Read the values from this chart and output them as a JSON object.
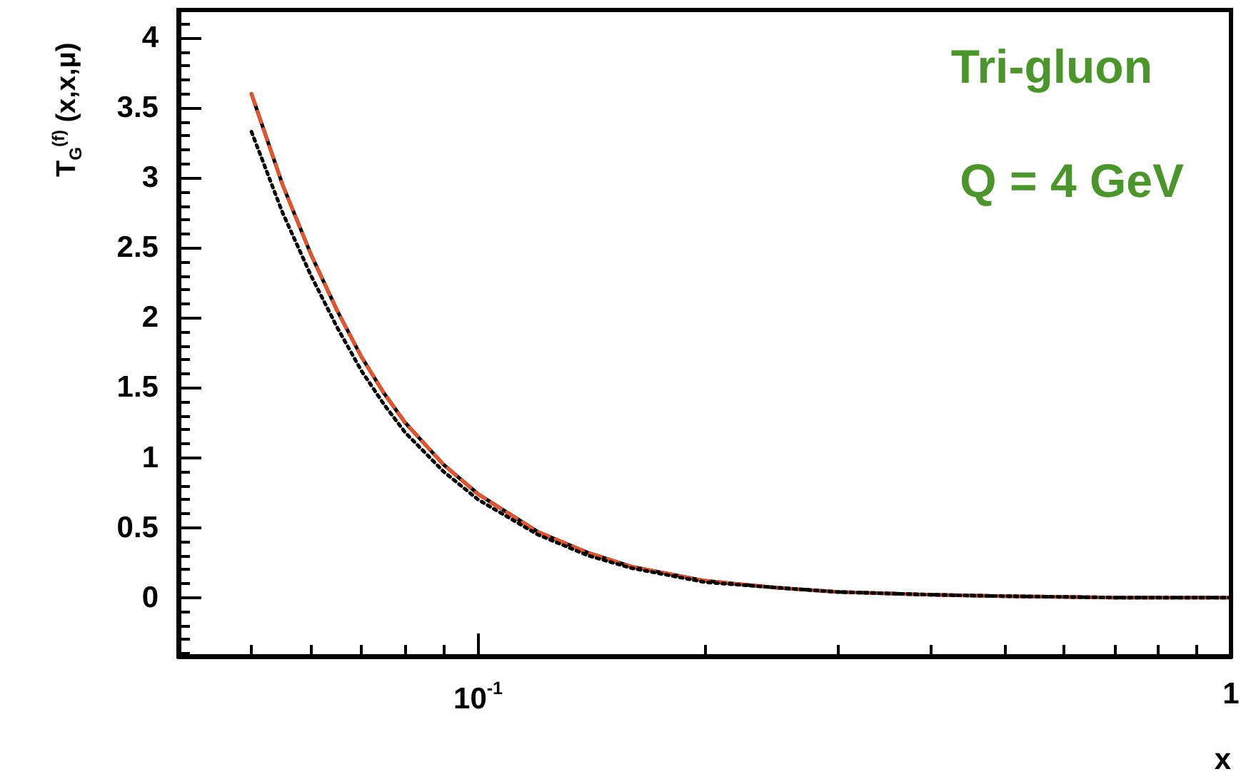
{
  "chart_data": {
    "type": "line",
    "ylabel": "T$_{G}$$^{(f)}$ (x,x,μ)",
    "xlabel": "x",
    "log": "x",
    "annotations": [
      "Tri-gluon",
      "Q = 4 GeV"
    ],
    "xlim": [
      0.04,
      1
    ],
    "ylim": [
      -0.42,
      4.2
    ],
    "xticks": [
      {
        "value": 0.1,
        "label": "10$^{-1}$"
      },
      1,
      {
        "value": 0.05,
        "label": null
      },
      {
        "value": 0.06,
        "label": null
      },
      {
        "value": 0.07,
        "label": null
      },
      {
        "value": 0.08,
        "label": null
      },
      {
        "value": 0.09,
        "label": null
      },
      {
        "value": 0.2,
        "label": null
      },
      {
        "value": 0.3,
        "label": null
      },
      {
        "value": 0.4,
        "label": null
      },
      {
        "value": 0.5,
        "label": null
      },
      {
        "value": 0.6,
        "label": null
      },
      {
        "value": 0.7,
        "label": null
      },
      {
        "value": 0.8,
        "label": null
      },
      {
        "value": 0.9,
        "label": null
      }
    ],
    "yticks": [
      0,
      0.5,
      1,
      1.5,
      2,
      2.5,
      3,
      3.5,
      4,
      {
        "value": -0.4,
        "label": null
      },
      {
        "value": -0.3,
        "label": null
      },
      {
        "value": -0.2,
        "label": null
      },
      {
        "value": -0.1,
        "label": null
      },
      {
        "value": 0.1,
        "label": null
      },
      {
        "value": 0.2,
        "label": null
      },
      {
        "value": 0.3,
        "label": null
      },
      {
        "value": 0.4,
        "label": null
      },
      {
        "value": 0.6,
        "label": null
      },
      {
        "value": 0.7,
        "label": null
      },
      {
        "value": 0.8,
        "label": null
      },
      {
        "value": 0.9,
        "label": null
      },
      {
        "value": 1.1,
        "label": null
      },
      {
        "value": 1.2,
        "label": null
      },
      {
        "value": 1.3,
        "label": null
      },
      {
        "value": 1.4,
        "label": null
      },
      {
        "value": 1.6,
        "label": null
      },
      {
        "value": 1.7,
        "label": null
      },
      {
        "value": 1.8,
        "label": null
      },
      {
        "value": 1.9,
        "label": null
      },
      {
        "value": 2.1,
        "label": null
      },
      {
        "value": 2.2,
        "label": null
      },
      {
        "value": 2.3,
        "label": null
      },
      {
        "value": 2.4,
        "label": null
      },
      {
        "value": 2.6,
        "label": null
      },
      {
        "value": 2.7,
        "label": null
      },
      {
        "value": 2.8,
        "label": null
      },
      {
        "value": 2.9,
        "label": null
      },
      {
        "value": 3.1,
        "label": null
      },
      {
        "value": 3.2,
        "label": null
      },
      {
        "value": 3.3,
        "label": null
      },
      {
        "value": 3.4,
        "label": null
      },
      {
        "value": 3.6,
        "label": null
      },
      {
        "value": 3.7,
        "label": null
      },
      {
        "value": 3.8,
        "label": null
      },
      {
        "value": 3.9,
        "label": null
      },
      {
        "value": 4.1,
        "label": null
      }
    ],
    "grid": false,
    "marker": "none",
    "x": [
      0.05,
      0.055,
      0.06,
      0.065,
      0.07,
      0.075,
      0.08,
      0.09,
      0.1,
      0.12,
      0.14,
      0.16,
      0.2,
      0.25,
      0.3,
      0.4,
      0.5,
      0.7,
      1.0
    ],
    "series": [
      {
        "color": "#000000",
        "line_style": "solid",
        "values": [
          3.6,
          2.95,
          2.45,
          2.05,
          1.72,
          1.46,
          1.25,
          0.95,
          0.74,
          0.47,
          0.32,
          0.22,
          0.12,
          0.07,
          0.04,
          0.02,
          0.01,
          0.0,
          0.0
        ]
      },
      {
        "color": "#e8542a",
        "line_style": "dashed",
        "values": [
          3.6,
          2.95,
          2.45,
          2.05,
          1.72,
          1.46,
          1.25,
          0.95,
          0.74,
          0.47,
          0.32,
          0.22,
          0.12,
          0.07,
          0.04,
          0.02,
          0.01,
          0.0,
          0.0
        ]
      },
      {
        "color": "#000000",
        "line_style": "dotted",
        "values": [
          3.33,
          2.75,
          2.3,
          1.93,
          1.62,
          1.38,
          1.18,
          0.9,
          0.7,
          0.45,
          0.3,
          0.21,
          0.11,
          0.07,
          0.04,
          0.02,
          0.01,
          0.0,
          0.0
        ]
      }
    ]
  }
}
